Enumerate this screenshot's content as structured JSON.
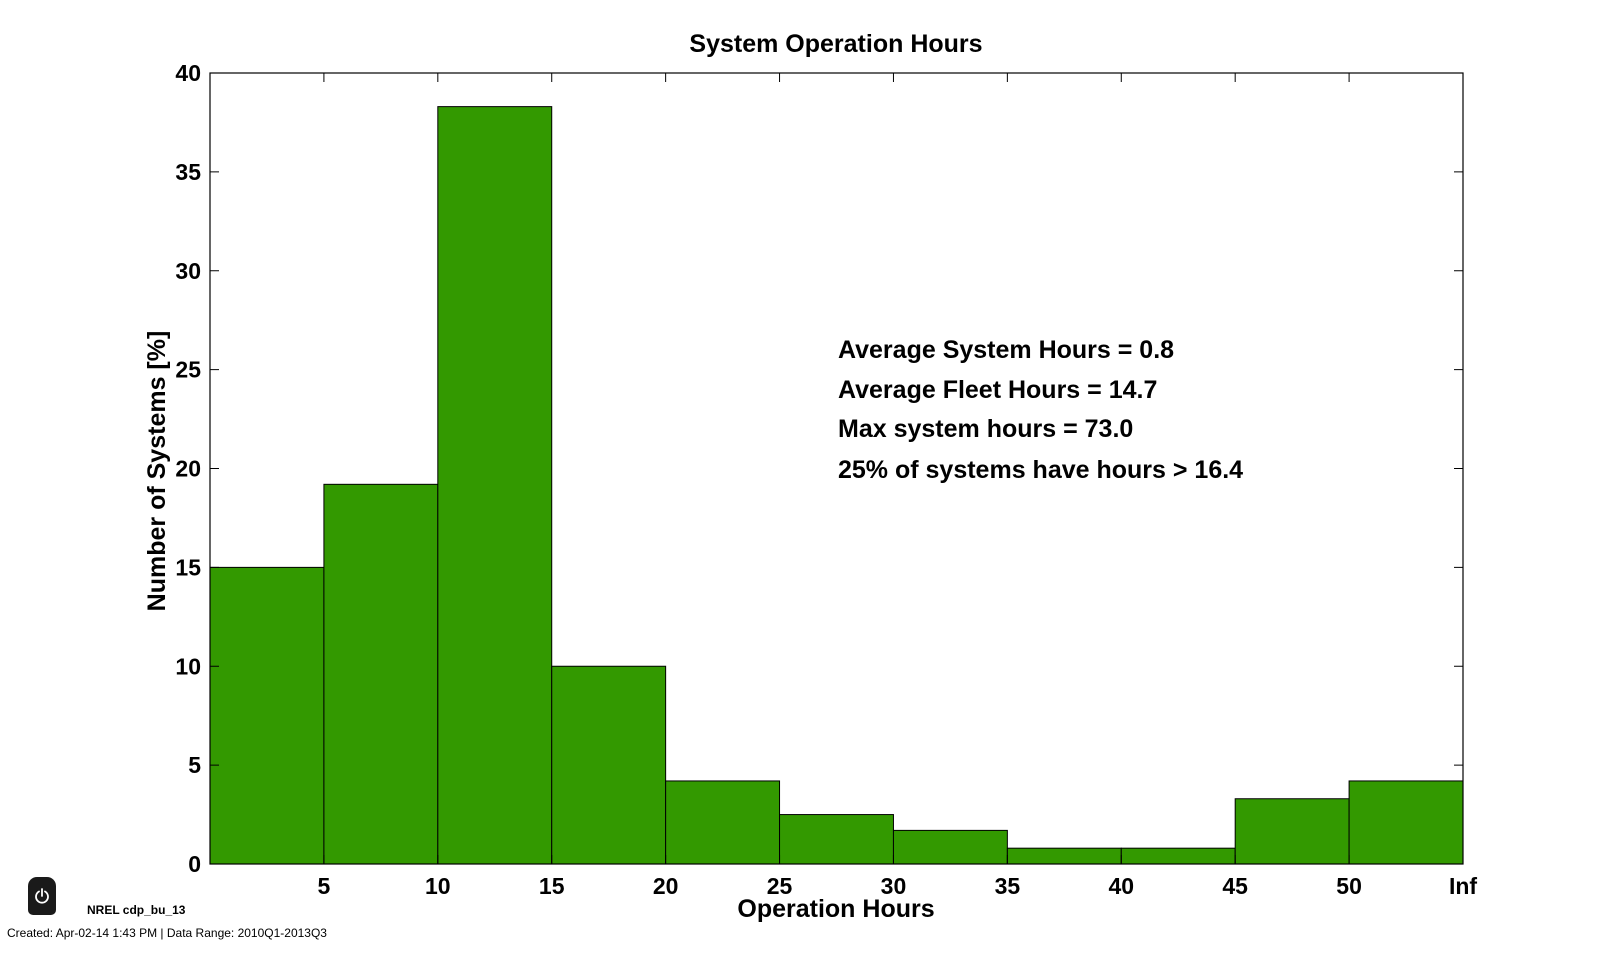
{
  "chart_data": {
    "type": "bar",
    "title": "System Operation Hours",
    "xlabel": "Operation Hours",
    "ylabel": "Number of Systems [%]",
    "bin_edges": [
      0,
      5,
      10,
      15,
      20,
      25,
      30,
      35,
      40,
      45,
      50,
      "Inf"
    ],
    "xticks": [
      "5",
      "10",
      "15",
      "20",
      "25",
      "30",
      "35",
      "40",
      "45",
      "50",
      "Inf"
    ],
    "values": [
      15.0,
      19.2,
      38.3,
      10.0,
      4.2,
      2.5,
      1.7,
      0.8,
      0.8,
      3.3,
      4.2
    ],
    "ylim": [
      0,
      40
    ],
    "yticks": [
      0,
      5,
      10,
      15,
      20,
      25,
      30,
      35,
      40
    ],
    "bar_color": "#339900",
    "grid": false,
    "annotations": [
      "Average System Hours = 0.8",
      "Average Fleet Hours = 14.7",
      "Max system hours = 73.0",
      "25% of systems have hours > 16.4"
    ]
  },
  "footer": {
    "logo_icon": "power-icon",
    "id_label": "NREL cdp_bu_13",
    "created_text": "Created: Apr-02-14  1:43 PM | Data Range: 2010Q1-2013Q3"
  }
}
